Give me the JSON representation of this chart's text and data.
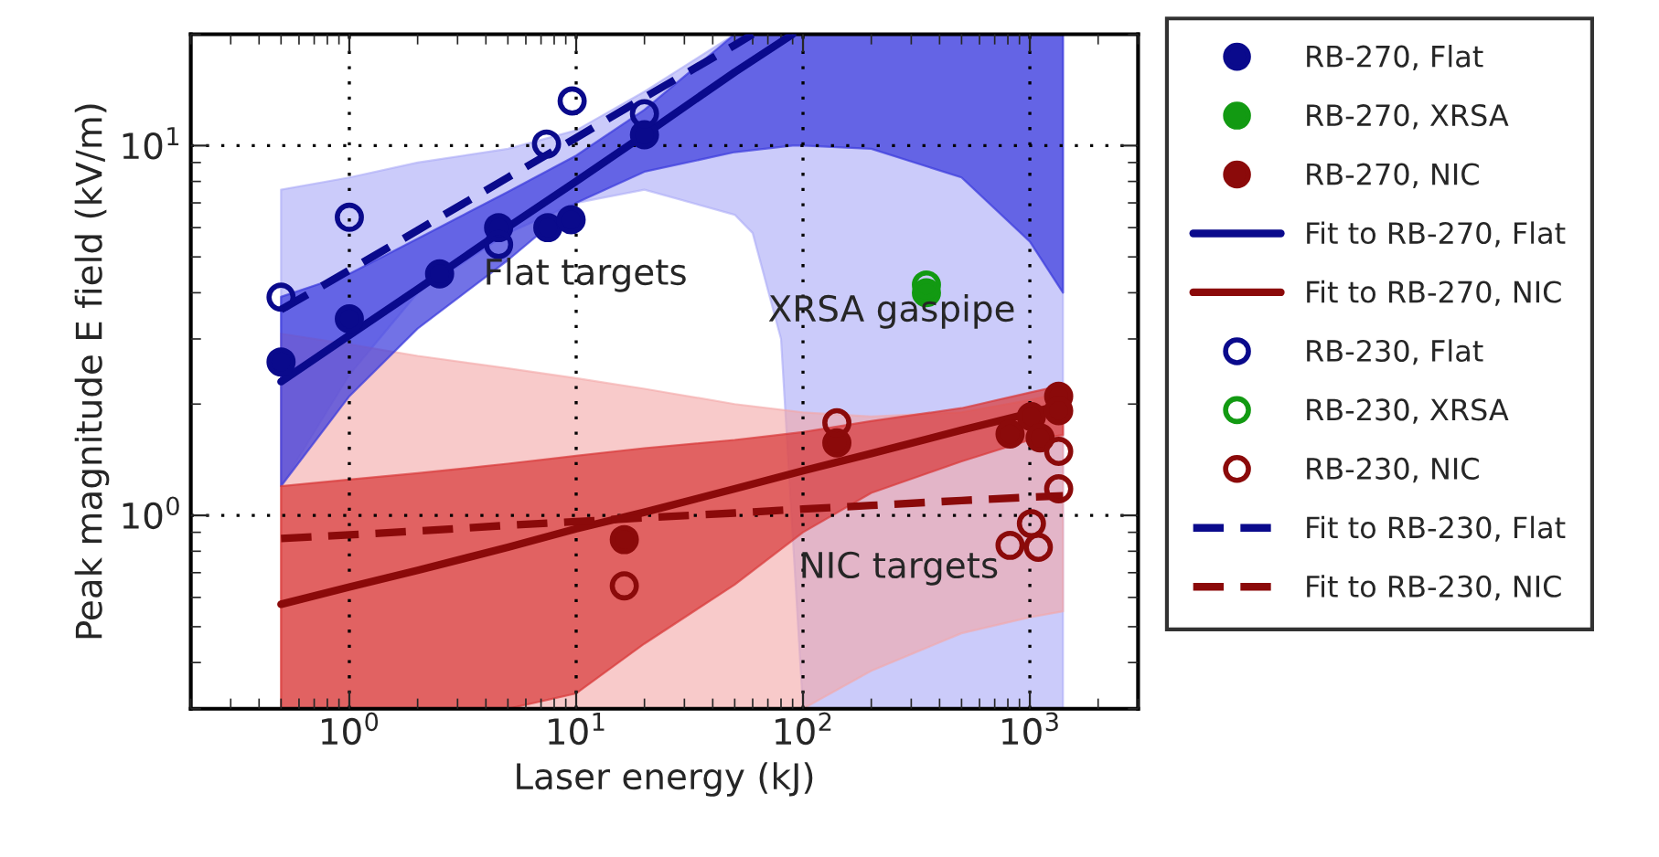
{
  "chart_data": {
    "type": "scatter",
    "xlabel": "Laser energy (kJ)",
    "ylabel": "Peak magnitude E field (kV/m)",
    "log": "xy",
    "grid": true,
    "legend": "right",
    "xlim": [
      0.2,
      3000
    ],
    "ylim": [
      0.3,
      20
    ],
    "xticks": [
      {
        "value": 1,
        "label": "10$^{0}$"
      },
      {
        "value": 10,
        "label": "10$^{1}$"
      },
      {
        "value": 100,
        "label": "10$^{2}$"
      },
      {
        "value": 1000,
        "label": "10$^{3}$"
      }
    ],
    "yticks": [
      {
        "value": 1,
        "label": "10$^{0}$"
      },
      {
        "value": 10,
        "label": "10$^{1}$"
      }
    ],
    "annotations": [
      {
        "text": "Flat targets",
        "x": 3.9,
        "y": 4.47
      },
      {
        "text": "XRSA gaspipe",
        "x": 70,
        "y": 3.56
      },
      {
        "text": "NIC targets",
        "x": 96,
        "y": 0.72
      }
    ],
    "series": [
      {
        "name": "RB-270, Flat",
        "marker": "circle",
        "color": "#0a0a8c",
        "x": [
          0.5,
          1.0,
          2.5,
          4.55,
          7.5,
          9.5,
          20
        ],
        "values": [
          2.6,
          3.4,
          4.5,
          6.0,
          6.0,
          6.3,
          10.7
        ]
      },
      {
        "name": "RB-270, XRSA",
        "marker": "circle",
        "color": "#129a12",
        "x": [
          350
        ],
        "values": [
          4.0
        ]
      },
      {
        "name": "RB-270, NIC",
        "marker": "circle",
        "color": "#8b0a0a",
        "x": [
          16.3,
          141,
          818,
          1016,
          1110,
          1340,
          1340
        ],
        "values": [
          0.86,
          1.57,
          1.66,
          1.85,
          1.62,
          2.1,
          1.92
        ]
      },
      {
        "name": "Fit to RB-270, Flat",
        "type": "line",
        "line_style": "solid",
        "color": "#0a0a8c",
        "x": [
          0.5,
          1,
          2,
          5,
          10,
          20,
          50,
          90,
          100,
          200,
          500,
          1000,
          1400
        ],
        "values": [
          2.3,
          3.07,
          4.09,
          6.02,
          8.0,
          10.7,
          15.8,
          20,
          null,
          null,
          null,
          null,
          null
        ],
        "upper": [
          3.9,
          4.5,
          5.6,
          7.5,
          9.4,
          12.5,
          20,
          20,
          20,
          20,
          20,
          20,
          20
        ],
        "lower": [
          1.2,
          2.1,
          3.2,
          4.9,
          7.0,
          8.5,
          9.6,
          10,
          10,
          9.8,
          8.2,
          5.5,
          4.0
        ]
      },
      {
        "name": "Fit to RB-270, NIC",
        "type": "line",
        "line_style": "solid",
        "color": "#8b0a0a",
        "x": [
          0.5,
          1,
          2,
          5,
          10,
          20,
          50,
          100,
          200,
          500,
          1000,
          1400
        ],
        "values": [
          0.575,
          0.64,
          0.71,
          0.82,
          0.92,
          1.02,
          1.18,
          1.32,
          1.47,
          1.7,
          1.89,
          2.0
        ],
        "upper": [
          1.2,
          1.25,
          1.3,
          1.38,
          1.45,
          1.52,
          1.6,
          1.68,
          1.8,
          1.95,
          2.15,
          2.25
        ],
        "lower": [
          0.3,
          0.3,
          0.3,
          0.3,
          0.33,
          0.45,
          0.65,
          0.9,
          1.15,
          1.4,
          1.6,
          1.65
        ]
      },
      {
        "name": "RB-230, Flat",
        "marker": "open circle",
        "color": "#0a0a8c",
        "x": [
          0.5,
          1.0,
          4.55,
          7.4,
          9.6,
          20
        ],
        "values": [
          3.89,
          6.4,
          5.4,
          10.1,
          13.2,
          12.2
        ]
      },
      {
        "name": "RB-230, XRSA",
        "marker": "open circle",
        "color": "#129a12",
        "x": [
          350
        ],
        "values": [
          4.2
        ]
      },
      {
        "name": "RB-230, NIC",
        "marker": "open circle",
        "color": "#8b0a0a",
        "x": [
          16.3,
          141,
          1340,
          1340,
          1016,
          818,
          1090
        ],
        "values": [
          0.645,
          1.78,
          1.49,
          1.18,
          0.95,
          0.83,
          0.82
        ]
      },
      {
        "name": "Fit to RB-230, Flat",
        "type": "line",
        "line_style": "dashed",
        "color": "#0a0a8c",
        "x": [
          0.5,
          1,
          2,
          5,
          10,
          20,
          50,
          60,
          80,
          100,
          200,
          500,
          1000,
          1400
        ],
        "values": [
          3.6,
          4.6,
          5.9,
          8.2,
          10.5,
          13.5,
          18.7,
          20,
          null,
          null,
          null,
          null,
          null,
          null
        ],
        "upper": [
          7.6,
          8.2,
          9.0,
          9.8,
          11,
          14,
          20,
          20,
          20,
          20,
          20,
          20,
          20,
          20
        ],
        "lower": [
          1.2,
          2.4,
          4.0,
          5.8,
          7.0,
          7.6,
          6.5,
          5.8,
          3.0,
          0.3,
          0.3,
          0.3,
          0.3,
          0.3
        ]
      },
      {
        "name": "Fit to RB-230, NIC",
        "type": "line",
        "line_style": "dashed",
        "color": "#8b0a0a",
        "x": [
          0.5,
          1,
          2,
          5,
          10,
          20,
          50,
          100,
          200,
          500,
          1000,
          1400
        ],
        "values": [
          0.866,
          0.886,
          0.907,
          0.94,
          0.962,
          0.985,
          1.015,
          1.04,
          1.064,
          1.097,
          1.12,
          1.13
        ],
        "upper": [
          3.1,
          2.9,
          2.7,
          2.5,
          2.35,
          2.2,
          2.0,
          1.9,
          1.85,
          1.9,
          2.05,
          2.15
        ],
        "lower": [
          0.3,
          0.3,
          0.3,
          0.3,
          0.3,
          0.3,
          0.3,
          0.3,
          0.38,
          0.48,
          0.53,
          0.55
        ]
      }
    ]
  }
}
